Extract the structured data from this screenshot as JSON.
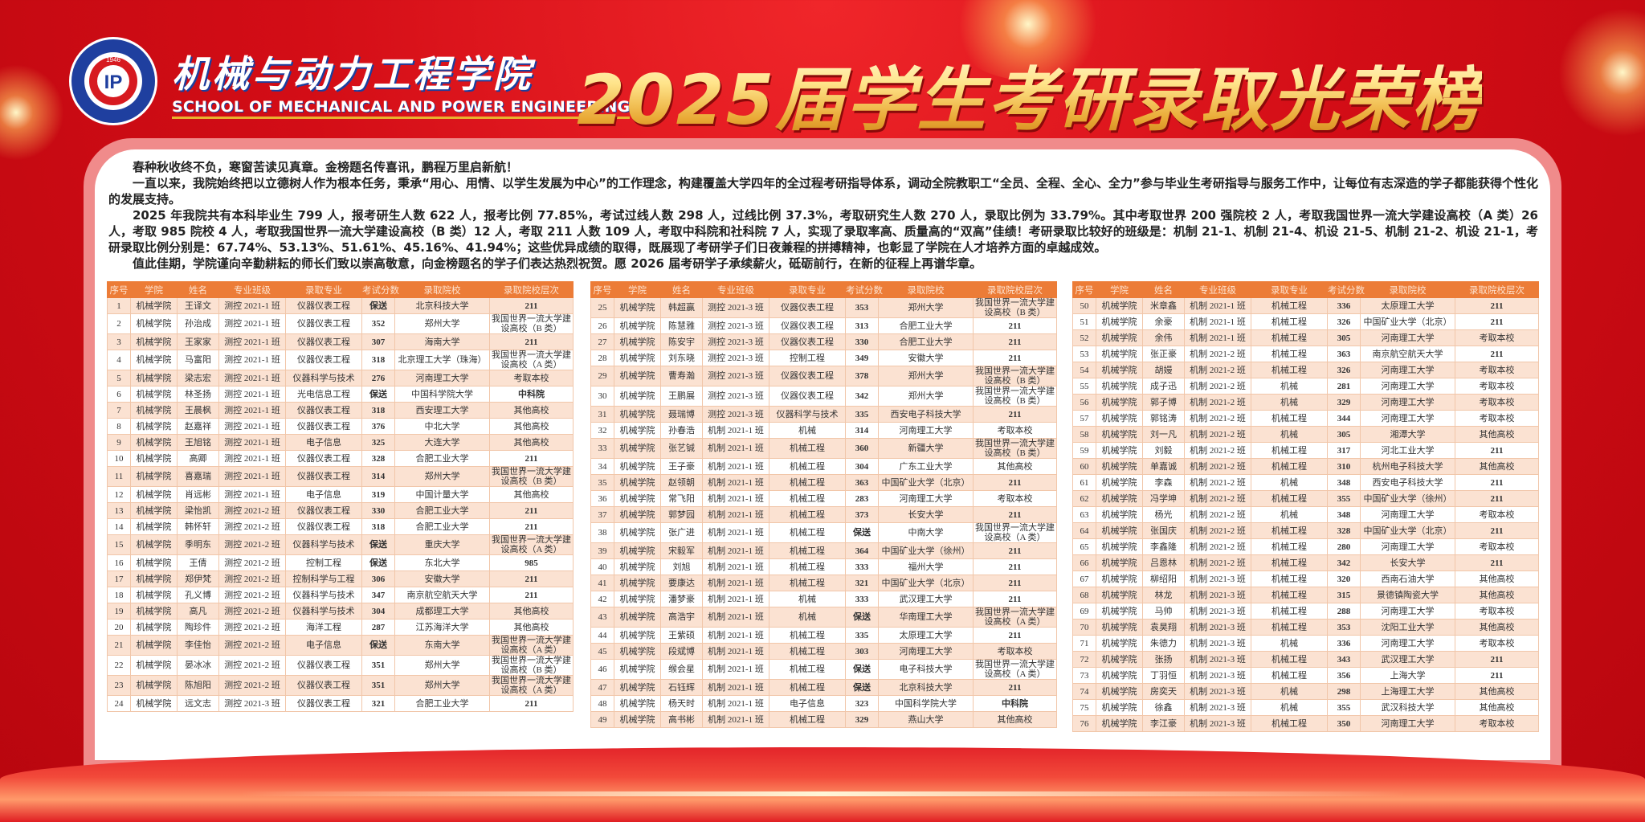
{
  "header": {
    "logo": {
      "ring_text": "机械与动力工程学院",
      "year": "1946",
      "en_ring_text": "SCHOOL OF MECHANICAL AND POWER ENGINEERING",
      "colors": {
        "ring": "#1f3f9f",
        "inner": "#d71a20"
      }
    },
    "school_name_cn": "机械与动力工程学院",
    "school_name_en": "SCHOOL OF MECHANICAL AND POWER ENGINEERING",
    "title": "2025届学生考研录取光荣榜"
  },
  "intro": [
    "春种秋收终不负，寒窗苦读见真章。金榜题名传喜讯，鹏程万里启新航！",
    "一直以来，我院始终把以立德树人作为根本任务，秉承“用心、用情、以学生发展为中心”的工作理念，构建覆盖大学四年的全过程考研指导体系，调动全院教职工“全员、全程、全心、全力”参与毕业生考研指导与服务工作中，让每位有志深造的学子都能获得个性化的发展支持。",
    "2025 年我院共有本科毕业生 799 人，报考研生人数 622 人，报考比例 77.85%，考试过线人数 298 人，过线比例 37.3%，考取研究生人数 270 人，录取比例为 33.79%。其中考取世界 200 强院校 2 人，考取我国世界一流大学建设高校（A 类）26 人，考取 985 院校 4 人，考取我国世界一流大学建设高校（B 类）12 人，考取 211 人数 109 人，考取中科院和社科院 7 人，实现了录取率高、质量高的“双高”佳绩！考研录取比较好的班级是：机制 21-1、机制 21-4、机设 21-5、机制 21-2、机设 21-1，考研录取比例分别是：67.74%、53.13%、51.61%、45.16%、41.94%；这些优异成绩的取得，既展现了考研学子们日夜兼程的拼搏精神，也彰显了学院在人才培养方面的卓越成效。",
    "值此佳期，学院谨向辛勤耕耘的师长们致以崇高敬意，向金榜题名的学子们表达热烈祝贺。愿 2026 届考研学子承续薪火，砥砺前行，在新的征程上再谱华章。"
  ],
  "colors": {
    "header_row": "#ec7c37",
    "odd_row": "#fbe2d2",
    "background": "#d30d16",
    "title_gold": "#f7d26a"
  },
  "columns": [
    "序号",
    "学院",
    "姓名",
    "专业班级",
    "录取专业",
    "考试分数",
    "录取院校",
    "录取院校层次"
  ],
  "tables": [
    [
      [
        "1",
        "机械学院",
        "王译文",
        "测控 2021-1 班",
        "仪器仪表工程",
        "保送",
        "北京科技大学",
        "211"
      ],
      [
        "2",
        "机械学院",
        "孙治成",
        "测控 2021-1 班",
        "仪器仪表工程",
        "352",
        "郑州大学",
        "我国世界一流大学建设高校（B 类）"
      ],
      [
        "3",
        "机械学院",
        "王家家",
        "测控 2021-1 班",
        "仪器仪表工程",
        "307",
        "海南大学",
        "211"
      ],
      [
        "4",
        "机械学院",
        "马富阳",
        "测控 2021-1 班",
        "仪器仪表工程",
        "318",
        "北京理工大学（珠海）",
        "我国世界一流大学建设高校（A 类）"
      ],
      [
        "5",
        "机械学院",
        "梁志宏",
        "测控 2021-1 班",
        "仪器科学与技术",
        "276",
        "河南理工大学",
        "考取本校"
      ],
      [
        "6",
        "机械学院",
        "林圣扬",
        "测控 2021-1 班",
        "光电信息工程",
        "保送",
        "中国科学院大学",
        "中科院"
      ],
      [
        "7",
        "机械学院",
        "王晨枫",
        "测控 2021-1 班",
        "仪器仪表工程",
        "318",
        "西安理工大学",
        "其他高校"
      ],
      [
        "8",
        "机械学院",
        "赵嘉祥",
        "测控 2021-1 班",
        "仪器仪表工程",
        "376",
        "中北大学",
        "其他高校"
      ],
      [
        "9",
        "机械学院",
        "王旭铭",
        "测控 2021-1 班",
        "电子信息",
        "325",
        "大连大学",
        "其他高校"
      ],
      [
        "10",
        "机械学院",
        "高卿",
        "测控 2021-1 班",
        "仪器仪表工程",
        "328",
        "合肥工业大学",
        "211"
      ],
      [
        "11",
        "机械学院",
        "喜嘉瑞",
        "测控 2021-1 班",
        "仪器仪表工程",
        "314",
        "郑州大学",
        "我国世界一流大学建设高校（B 类）"
      ],
      [
        "12",
        "机械学院",
        "肖远彬",
        "测控 2021-1 班",
        "电子信息",
        "319",
        "中国计量大学",
        "其他高校"
      ],
      [
        "13",
        "机械学院",
        "梁怡凯",
        "测控 2021-2 班",
        "仪器仪表工程",
        "330",
        "合肥工业大学",
        "211"
      ],
      [
        "14",
        "机械学院",
        "韩怀轩",
        "测控 2021-2 班",
        "仪器仪表工程",
        "318",
        "合肥工业大学",
        "211"
      ],
      [
        "15",
        "机械学院",
        "季明东",
        "测控 2021-2 班",
        "仪器科学与技术",
        "保送",
        "重庆大学",
        "我国世界一流大学建设高校（A 类）"
      ],
      [
        "16",
        "机械学院",
        "王倩",
        "测控 2021-2 班",
        "控制工程",
        "保送",
        "东北大学",
        "985"
      ],
      [
        "17",
        "机械学院",
        "郑伊梵",
        "测控 2021-2 班",
        "控制科学与工程",
        "306",
        "安徽大学",
        "211"
      ],
      [
        "18",
        "机械学院",
        "孔义博",
        "测控 2021-2 班",
        "仪器科学与技术",
        "347",
        "南京航空航天大学",
        "211"
      ],
      [
        "19",
        "机械学院",
        "高凡",
        "测控 2021-2 班",
        "仪器科学与技术",
        "304",
        "成都理工大学",
        "其他高校"
      ],
      [
        "20",
        "机械学院",
        "陶珍件",
        "测控 2021-2 班",
        "海洋工程",
        "287",
        "江苏海洋大学",
        "其他高校"
      ],
      [
        "21",
        "机械学院",
        "李佳怡",
        "测控 2021-2 班",
        "电子信息",
        "保送",
        "东南大学",
        "我国世界一流大学建设高校（A 类）"
      ],
      [
        "22",
        "机械学院",
        "晏冰冰",
        "测控 2021-2 班",
        "仪器仪表工程",
        "351",
        "郑州大学",
        "我国世界一流大学建设高校（B 类）"
      ],
      [
        "23",
        "机械学院",
        "陈旭阳",
        "测控 2021-2 班",
        "仪器仪表工程",
        "351",
        "郑州大学",
        "我国世界一流大学建设高校（A 类）"
      ],
      [
        "24",
        "机械学院",
        "远文志",
        "测控 2021-3 班",
        "仪器仪表工程",
        "321",
        "合肥工业大学",
        "211"
      ]
    ],
    [
      [
        "25",
        "机械学院",
        "韩超赢",
        "测控 2021-3 班",
        "仪器仪表工程",
        "353",
        "郑州大学",
        "我国世界一流大学建设高校（B 类）"
      ],
      [
        "26",
        "机械学院",
        "陈慧雅",
        "测控 2021-3 班",
        "仪器仪表工程",
        "313",
        "合肥工业大学",
        "211"
      ],
      [
        "27",
        "机械学院",
        "陈安宇",
        "测控 2021-3 班",
        "仪器仪表工程",
        "330",
        "合肥工业大学",
        "211"
      ],
      [
        "28",
        "机械学院",
        "刘东晓",
        "测控 2021-3 班",
        "控制工程",
        "349",
        "安徽大学",
        "211"
      ],
      [
        "29",
        "机械学院",
        "曹寿瀚",
        "测控 2021-3 班",
        "仪器仪表工程",
        "378",
        "郑州大学",
        "我国世界一流大学建设高校（B 类）"
      ],
      [
        "30",
        "机械学院",
        "王鹏展",
        "测控 2021-3 班",
        "仪器仪表工程",
        "342",
        "郑州大学",
        "我国世界一流大学建设高校（B 类）"
      ],
      [
        "31",
        "机械学院",
        "聂瑞博",
        "测控 2021-3 班",
        "仪器科学与技术",
        "335",
        "西安电子科技大学",
        "211"
      ],
      [
        "32",
        "机械学院",
        "孙春浩",
        "机制 2021-1 班",
        "机械",
        "314",
        "河南理工大学",
        "考取本校"
      ],
      [
        "33",
        "机械学院",
        "张艺铖",
        "机制 2021-1 班",
        "机械工程",
        "360",
        "新疆大学",
        "我国世界一流大学建设高校（B 类）"
      ],
      [
        "34",
        "机械学院",
        "王子豪",
        "机制 2021-1 班",
        "机械工程",
        "304",
        "广东工业大学",
        "其他高校"
      ],
      [
        "35",
        "机械学院",
        "赵领朝",
        "机制 2021-1 班",
        "机械工程",
        "363",
        "中国矿业大学（北京）",
        "211"
      ],
      [
        "36",
        "机械学院",
        "常飞阳",
        "机制 2021-1 班",
        "机械工程",
        "283",
        "河南理工大学",
        "考取本校"
      ],
      [
        "37",
        "机械学院",
        "郭梦园",
        "机制 2021-1 班",
        "机械工程",
        "373",
        "长安大学",
        "211"
      ],
      [
        "38",
        "机械学院",
        "张广进",
        "机制 2021-1 班",
        "机械工程",
        "保送",
        "中南大学",
        "我国世界一流大学建设高校（A 类）"
      ],
      [
        "39",
        "机械学院",
        "宋毅军",
        "机制 2021-1 班",
        "机械工程",
        "364",
        "中国矿业大学（徐州）",
        "211"
      ],
      [
        "40",
        "机械学院",
        "刘旭",
        "机制 2021-1 班",
        "机械工程",
        "333",
        "福州大学",
        "211"
      ],
      [
        "41",
        "机械学院",
        "要康达",
        "机制 2021-1 班",
        "机械工程",
        "321",
        "中国矿业大学（北京）",
        "211"
      ],
      [
        "42",
        "机械学院",
        "潘梦豪",
        "机制 2021-1 班",
        "机械",
        "333",
        "武汉理工大学",
        "211"
      ],
      [
        "43",
        "机械学院",
        "高浩宇",
        "机制 2021-1 班",
        "机械",
        "保送",
        "华南理工大学",
        "我国世界一流大学建设高校（A 类）"
      ],
      [
        "44",
        "机械学院",
        "王紫硕",
        "机制 2021-1 班",
        "机械工程",
        "335",
        "太原理工大学",
        "211"
      ],
      [
        "45",
        "机械学院",
        "段斌博",
        "机制 2021-1 班",
        "机械工程",
        "303",
        "河南理工大学",
        "考取本校"
      ],
      [
        "46",
        "机械学院",
        "缑会星",
        "机制 2021-1 班",
        "机械工程",
        "保送",
        "电子科技大学",
        "我国世界一流大学建设高校（A 类）"
      ],
      [
        "47",
        "机械学院",
        "石钰辉",
        "机制 2021-1 班",
        "机械工程",
        "保送",
        "北京科技大学",
        "211"
      ],
      [
        "48",
        "机械学院",
        "杨天时",
        "机制 2021-1 班",
        "电子信息",
        "323",
        "中国科学院大学",
        "中科院"
      ],
      [
        "49",
        "机械学院",
        "高书彬",
        "机制 2021-1 班",
        "机械工程",
        "329",
        "燕山大学",
        "其他高校"
      ]
    ],
    [
      [
        "50",
        "机械学院",
        "米章鑫",
        "机制 2021-1 班",
        "机械工程",
        "336",
        "太原理工大学",
        "211"
      ],
      [
        "51",
        "机械学院",
        "余豪",
        "机制 2021-1 班",
        "机械工程",
        "326",
        "中国矿业大学（北京）",
        "211"
      ],
      [
        "52",
        "机械学院",
        "余伟",
        "机制 2021-1 班",
        "机械工程",
        "305",
        "河南理工大学",
        "考取本校"
      ],
      [
        "53",
        "机械学院",
        "张正豪",
        "机制 2021-2 班",
        "机械工程",
        "363",
        "南京航空航天大学",
        "211"
      ],
      [
        "54",
        "机械学院",
        "胡嫚",
        "机制 2021-2 班",
        "机械工程",
        "326",
        "河南理工大学",
        "考取本校"
      ],
      [
        "55",
        "机械学院",
        "成子迅",
        "机制 2021-2 班",
        "机械",
        "281",
        "河南理工大学",
        "考取本校"
      ],
      [
        "56",
        "机械学院",
        "郭子博",
        "机制 2021-2 班",
        "机械",
        "329",
        "河南理工大学",
        "考取本校"
      ],
      [
        "57",
        "机械学院",
        "郭铭涛",
        "机制 2021-2 班",
        "机械工程",
        "344",
        "河南理工大学",
        "考取本校"
      ],
      [
        "58",
        "机械学院",
        "刘一凡",
        "机制 2021-2 班",
        "机械",
        "305",
        "湘潭大学",
        "其他高校"
      ],
      [
        "59",
        "机械学院",
        "刘毅",
        "机制 2021-2 班",
        "机械工程",
        "317",
        "河北工业大学",
        "211"
      ],
      [
        "60",
        "机械学院",
        "单嘉诚",
        "机制 2021-2 班",
        "机械工程",
        "310",
        "杭州电子科技大学",
        "其他高校"
      ],
      [
        "61",
        "机械学院",
        "李森",
        "机制 2021-2 班",
        "机械",
        "348",
        "西安电子科技大学",
        "211"
      ],
      [
        "62",
        "机械学院",
        "冯学坤",
        "机制 2021-2 班",
        "机械工程",
        "355",
        "中国矿业大学（徐州）",
        "211"
      ],
      [
        "63",
        "机械学院",
        "杨光",
        "机制 2021-2 班",
        "机械",
        "348",
        "河南理工大学",
        "考取本校"
      ],
      [
        "64",
        "机械学院",
        "张国庆",
        "机制 2021-2 班",
        "机械工程",
        "328",
        "中国矿业大学（北京）",
        "211"
      ],
      [
        "65",
        "机械学院",
        "李鑫隆",
        "机制 2021-2 班",
        "机械工程",
        "280",
        "河南理工大学",
        "考取本校"
      ],
      [
        "66",
        "机械学院",
        "吕恩林",
        "机制 2021-2 班",
        "机械工程",
        "342",
        "长安大学",
        "211"
      ],
      [
        "67",
        "机械学院",
        "柳绍阳",
        "机制 2021-3 班",
        "机械工程",
        "320",
        "西南石油大学",
        "其他高校"
      ],
      [
        "68",
        "机械学院",
        "林龙",
        "机制 2021-3 班",
        "机械工程",
        "315",
        "景德镇陶瓷大学",
        "其他高校"
      ],
      [
        "69",
        "机械学院",
        "马帅",
        "机制 2021-3 班",
        "机械工程",
        "288",
        "河南理工大学",
        "考取本校"
      ],
      [
        "70",
        "机械学院",
        "袁昊翔",
        "机制 2021-3 班",
        "机械工程",
        "353",
        "沈阳工业大学",
        "其他高校"
      ],
      [
        "71",
        "机械学院",
        "朱德力",
        "机制 2021-3 班",
        "机械",
        "336",
        "河南理工大学",
        "考取本校"
      ],
      [
        "72",
        "机械学院",
        "张扬",
        "机制 2021-3 班",
        "机械工程",
        "343",
        "武汉理工大学",
        "211"
      ],
      [
        "73",
        "机械学院",
        "丁羽恒",
        "机制 2021-3 班",
        "机械工程",
        "356",
        "上海大学",
        "211"
      ],
      [
        "74",
        "机械学院",
        "房奕天",
        "机制 2021-3 班",
        "机械",
        "298",
        "上海理工大学",
        "其他高校"
      ],
      [
        "75",
        "机械学院",
        "徐鑫",
        "机制 2021-3 班",
        "机械",
        "355",
        "武汉科技大学",
        "其他高校"
      ],
      [
        "76",
        "机械学院",
        "李江豪",
        "机制 2021-3 班",
        "机械工程",
        "350",
        "河南理工大学",
        "考取本校"
      ]
    ]
  ]
}
